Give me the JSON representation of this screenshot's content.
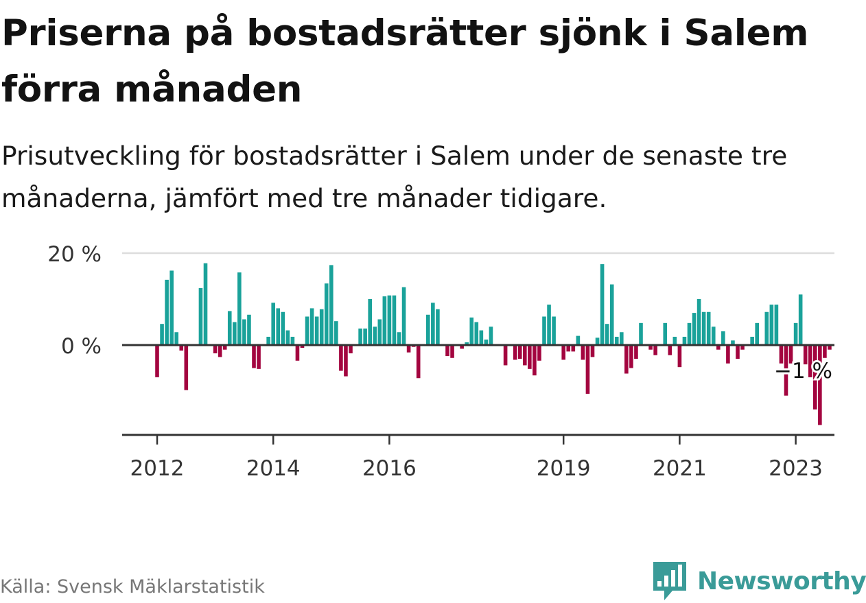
{
  "title": "Priserna på bostadsrätter sjönk i Salem förra månaden",
  "subtitle": "Prisutveckling för bostadsrätter i Salem under de senaste tre månaderna, jämfört med tre månader tidigare.",
  "source": "Källa: Svensk Mäklarstatistik",
  "brand": "Newsworthy",
  "colors": {
    "positive": "#1aa29a",
    "negative": "#a3053f",
    "brand": "#3a9b98",
    "axis": "#333333",
    "grid": "#dddddd"
  },
  "chart_data": {
    "type": "bar",
    "ylabel": "",
    "xlabel": "",
    "ylim": [
      -20,
      20
    ],
    "y_ticks": [
      {
        "value": 20,
        "label": "20 %"
      },
      {
        "value": 0,
        "label": "0 %"
      }
    ],
    "x_ticks": [
      {
        "value": 2012.0,
        "label": "2012"
      },
      {
        "value": 2014.0,
        "label": "2014"
      },
      {
        "value": 2016.0,
        "label": "2016"
      },
      {
        "value": 2019.0,
        "label": "2019"
      },
      {
        "value": 2021.0,
        "label": "2021"
      },
      {
        "value": 2023.0,
        "label": "2023"
      }
    ],
    "x_start": 2012.0,
    "annotation": "−1 %",
    "values": [
      -7.0,
      4.6,
      14.2,
      16.2,
      2.8,
      -1.2,
      -9.8,
      0,
      0,
      12.4,
      17.8,
      0,
      -1.8,
      -2.6,
      -1.0,
      7.4,
      5.0,
      15.8,
      5.6,
      6.6,
      -5.0,
      -5.2,
      0,
      1.8,
      9.2,
      8.0,
      7.2,
      3.2,
      1.8,
      -3.4,
      -0.6,
      6.2,
      8.0,
      6.2,
      7.8,
      13.4,
      17.4,
      5.2,
      -5.6,
      -6.8,
      -1.8,
      0,
      3.6,
      3.6,
      10.0,
      4.0,
      5.6,
      10.6,
      10.8,
      10.8,
      2.8,
      12.6,
      -1.6,
      -0.4,
      -7.2,
      0,
      6.6,
      9.2,
      7.8,
      0,
      -2.4,
      -2.8,
      0,
      -0.8,
      0.6,
      6.0,
      5.0,
      3.2,
      1.2,
      4.0,
      0.2,
      0,
      -4.4,
      0,
      -3.2,
      -3.0,
      -4.4,
      -5.2,
      -6.6,
      -3.4,
      6.2,
      8.8,
      6.2,
      0,
      -3.2,
      -1.4,
      -1.4,
      2.0,
      -3.2,
      -10.6,
      -2.6,
      1.6,
      17.6,
      4.6,
      13.2,
      1.8,
      2.8,
      -6.2,
      -5.0,
      -3.0,
      4.8,
      0,
      -1.0,
      -2.2,
      0,
      4.8,
      -2.2,
      1.8,
      -4.8,
      1.8,
      4.8,
      7.0,
      10.0,
      7.2,
      7.2,
      4.0,
      -1.0,
      3.0,
      -4.0,
      1.0,
      -3.0,
      -1.0,
      0,
      1.8,
      4.8,
      0,
      7.2,
      8.8,
      8.8,
      -4.0,
      -11.0,
      -4.0,
      4.8,
      11.0,
      -4.2,
      -7.0,
      -14.0,
      -17.4,
      -2.8,
      -1.0
    ]
  }
}
